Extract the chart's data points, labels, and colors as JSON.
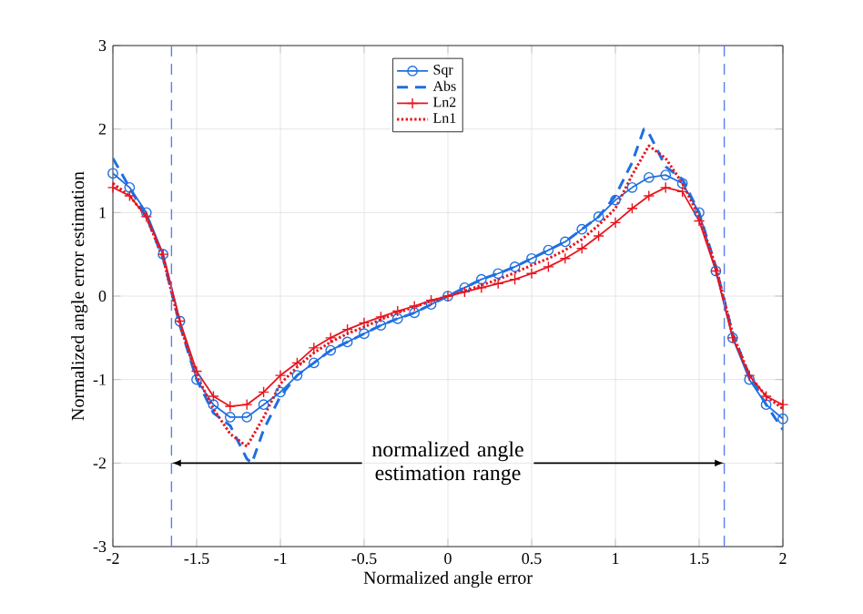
{
  "chart_data": {
    "type": "line",
    "xlabel": "Normalized angle error",
    "ylabel": "Normalized angle error estimation",
    "xlim": [
      -2,
      2
    ],
    "ylim": [
      -3,
      3
    ],
    "xticks": [
      -2,
      -1.5,
      -1,
      -0.5,
      0,
      0.5,
      1,
      1.5,
      2
    ],
    "yticks": [
      -3,
      -2,
      -1,
      0,
      1,
      2,
      3
    ],
    "grid": true,
    "legend": "top",
    "x": [
      -2,
      -1.9,
      -1.8,
      -1.7,
      -1.6,
      -1.5,
      -1.4,
      -1.3,
      -1.2,
      -1.1,
      -1.0,
      -0.9,
      -0.8,
      -0.7,
      -0.6,
      -0.5,
      -0.4,
      -0.3,
      -0.2,
      -0.1,
      0,
      0.1,
      0.2,
      0.3,
      0.4,
      0.5,
      0.6,
      0.7,
      0.8,
      0.9,
      1.0,
      1.1,
      1.2,
      1.3,
      1.4,
      1.5,
      1.6,
      1.7,
      1.8,
      1.9,
      2.0
    ],
    "series": [
      {
        "name": "Sqr",
        "color": "#1f6fe0",
        "marker": "circle",
        "line_style": "solid",
        "values": [
          1.47,
          1.3,
          1.0,
          0.5,
          -0.3,
          -1.0,
          -1.3,
          -1.45,
          -1.45,
          -1.3,
          -1.15,
          -0.95,
          -0.8,
          -0.65,
          -0.55,
          -0.45,
          -0.35,
          -0.27,
          -0.2,
          -0.1,
          0,
          0.1,
          0.2,
          0.27,
          0.35,
          0.45,
          0.55,
          0.65,
          0.8,
          0.95,
          1.15,
          1.3,
          1.42,
          1.45,
          1.35,
          1.0,
          0.3,
          -0.5,
          -1.0,
          -1.3,
          -1.47
        ]
      },
      {
        "name": "Abs",
        "color": "#1f6fe0",
        "marker": "none",
        "line_style": "dashed",
        "x": [
          -2,
          -1.9,
          -1.8,
          -1.7,
          -1.6,
          -1.5,
          -1.4,
          -1.3,
          -1.2,
          -1.17,
          -1.1,
          -1.0,
          -0.9,
          -0.8,
          -0.7,
          -0.6,
          -0.5,
          -0.4,
          -0.3,
          -0.2,
          -0.1,
          0,
          0.1,
          0.2,
          0.3,
          0.4,
          0.5,
          0.6,
          0.7,
          0.8,
          0.9,
          1.0,
          1.1,
          1.17,
          1.2,
          1.3,
          1.4,
          1.5,
          1.6,
          1.7,
          1.8,
          1.9,
          2.0
        ],
        "values": [
          1.65,
          1.3,
          0.95,
          0.45,
          -0.35,
          -1.0,
          -1.4,
          -1.55,
          -1.95,
          -2.0,
          -1.6,
          -1.2,
          -0.95,
          -0.8,
          -0.65,
          -0.55,
          -0.45,
          -0.35,
          -0.27,
          -0.2,
          -0.1,
          0,
          0.1,
          0.2,
          0.27,
          0.35,
          0.45,
          0.55,
          0.65,
          0.8,
          0.95,
          1.2,
          1.6,
          2.0,
          1.95,
          1.55,
          1.4,
          1.0,
          0.35,
          -0.45,
          -0.95,
          -1.3,
          -1.6
        ]
      },
      {
        "name": "Ln2",
        "color": "#e8141e",
        "marker": "cross",
        "line_style": "solid",
        "values": [
          1.3,
          1.2,
          0.95,
          0.5,
          -0.3,
          -0.9,
          -1.2,
          -1.32,
          -1.3,
          -1.15,
          -0.95,
          -0.8,
          -0.62,
          -0.5,
          -0.4,
          -0.32,
          -0.25,
          -0.18,
          -0.12,
          -0.05,
          0,
          0.05,
          0.1,
          0.15,
          0.2,
          0.27,
          0.35,
          0.45,
          0.57,
          0.72,
          0.88,
          1.05,
          1.2,
          1.3,
          1.25,
          0.9,
          0.3,
          -0.5,
          -0.95,
          -1.2,
          -1.3
        ]
      },
      {
        "name": "Ln1",
        "color": "#e8141e",
        "marker": "none",
        "line_style": "dotted",
        "values": [
          1.35,
          1.2,
          0.95,
          0.45,
          -0.35,
          -0.95,
          -1.35,
          -1.65,
          -1.8,
          -1.45,
          -1.05,
          -0.85,
          -0.68,
          -0.55,
          -0.45,
          -0.37,
          -0.28,
          -0.2,
          -0.13,
          -0.06,
          0,
          0.06,
          0.13,
          0.2,
          0.28,
          0.37,
          0.45,
          0.55,
          0.68,
          0.85,
          1.05,
          1.45,
          1.8,
          1.65,
          1.35,
          0.95,
          0.35,
          -0.45,
          -0.95,
          -1.2,
          -1.35
        ]
      }
    ],
    "ref_lines": [
      {
        "axis": "x",
        "value": -1.65,
        "color": "#5b7fe8",
        "line_style": "dashed"
      },
      {
        "axis": "x",
        "value": 1.65,
        "color": "#5b7fe8",
        "line_style": "dashed"
      }
    ],
    "annotations": [
      {
        "text": "normalized angle estimation range",
        "x": 1.65,
        "y": -2
      }
    ]
  }
}
